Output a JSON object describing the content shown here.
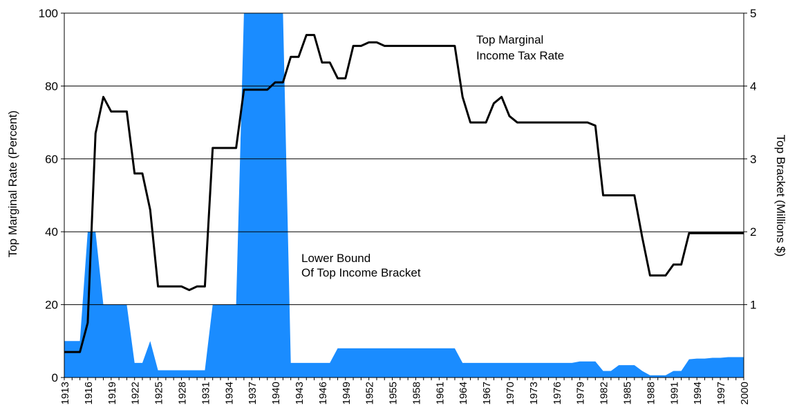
{
  "chart_data": {
    "type": "line",
    "title": "",
    "x_years": [
      1913,
      1914,
      1915,
      1916,
      1917,
      1918,
      1919,
      1920,
      1921,
      1922,
      1923,
      1924,
      1925,
      1926,
      1927,
      1928,
      1929,
      1930,
      1931,
      1932,
      1933,
      1934,
      1935,
      1936,
      1937,
      1938,
      1939,
      1940,
      1941,
      1942,
      1943,
      1944,
      1945,
      1946,
      1947,
      1948,
      1949,
      1950,
      1951,
      1952,
      1953,
      1954,
      1955,
      1956,
      1957,
      1958,
      1959,
      1960,
      1961,
      1962,
      1963,
      1964,
      1965,
      1966,
      1967,
      1968,
      1969,
      1970,
      1971,
      1972,
      1973,
      1974,
      1975,
      1976,
      1977,
      1978,
      1979,
      1980,
      1981,
      1982,
      1983,
      1984,
      1985,
      1986,
      1987,
      1988,
      1989,
      1990,
      1991,
      1992,
      1993,
      1994,
      1995,
      1996,
      1997,
      1998,
      1999,
      2000
    ],
    "x_tick_labels": [
      "1913",
      "1916",
      "1919",
      "1922",
      "1925",
      "1928",
      "1931",
      "1934",
      "1937",
      "1940",
      "1943",
      "1946",
      "1949",
      "1952",
      "1955",
      "1958",
      "1961",
      "1964",
      "1967",
      "1970",
      "1973",
      "1976",
      "1979",
      "1982",
      "1985",
      "1988",
      "1991",
      "1994",
      "1997",
      "2000"
    ],
    "y_left": {
      "label": "Top Marginal Rate (Percent)",
      "ylim": [
        0,
        100
      ],
      "ticks": [
        "0",
        "20",
        "40",
        "60",
        "80",
        "100"
      ]
    },
    "y_right": {
      "label": "Top Bracket (Millions $)",
      "ylim": [
        0,
        5
      ],
      "ticks": [
        "1",
        "2",
        "3",
        "4",
        "5"
      ]
    },
    "grid": true,
    "series": [
      {
        "type": "area",
        "axis": "right",
        "color": "#1a8cff",
        "values": [
          0.5,
          0.5,
          0.5,
          2.0,
          2.0,
          1.0,
          1.0,
          1.0,
          1.0,
          0.2,
          0.2,
          0.5,
          0.1,
          0.1,
          0.1,
          0.1,
          0.1,
          0.1,
          0.1,
          1.0,
          1.0,
          1.0,
          1.0,
          5.0,
          5.0,
          5.0,
          5.0,
          5.0,
          5.0,
          0.2,
          0.2,
          0.2,
          0.2,
          0.2,
          0.2,
          0.4,
          0.4,
          0.4,
          0.4,
          0.4,
          0.4,
          0.4,
          0.4,
          0.4,
          0.4,
          0.4,
          0.4,
          0.4,
          0.4,
          0.4,
          0.4,
          0.2,
          0.2,
          0.2,
          0.2,
          0.2,
          0.2,
          0.2,
          0.2,
          0.2,
          0.2,
          0.2,
          0.2,
          0.2,
          0.2,
          0.2,
          0.22,
          0.22,
          0.22,
          0.09,
          0.09,
          0.17,
          0.17,
          0.17,
          0.09,
          0.03,
          0.03,
          0.03,
          0.09,
          0.09,
          0.25,
          0.26,
          0.26,
          0.27,
          0.27,
          0.28,
          0.28,
          0.28
        ]
      },
      {
        "type": "line",
        "axis": "left",
        "color": "#000000",
        "values": [
          7,
          7,
          7,
          15,
          67,
          77,
          73,
          73,
          73,
          56,
          56,
          46,
          25,
          25,
          25,
          25,
          24,
          25,
          25,
          63,
          63,
          63,
          63,
          79,
          79,
          79,
          79,
          81,
          81,
          88,
          88,
          94,
          94,
          86.45,
          86.45,
          82.13,
          82.13,
          91,
          91,
          92,
          92,
          91,
          91,
          91,
          91,
          91,
          91,
          91,
          91,
          91,
          91,
          77,
          70,
          70,
          70,
          75.25,
          77,
          71.75,
          70,
          70,
          70,
          70,
          70,
          70,
          70,
          70,
          70,
          70,
          69.13,
          50,
          50,
          50,
          50,
          50,
          38.5,
          28,
          28,
          28,
          31,
          31,
          39.6,
          39.6,
          39.6,
          39.6,
          39.6,
          39.6,
          39.6,
          39.6
        ]
      }
    ],
    "annotations": [
      {
        "lines": [
          "Top Marginal",
          "Income Tax Rate"
        ]
      },
      {
        "lines": [
          "Lower Bound",
          "Of Top Income Bracket"
        ]
      }
    ]
  }
}
